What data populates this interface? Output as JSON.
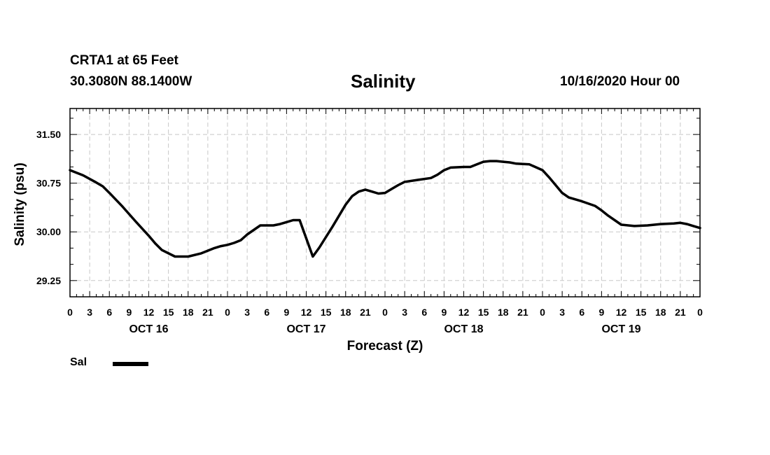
{
  "header": {
    "station": "CRTA1 at 65 Feet",
    "coords": "30.3080N 88.1400W",
    "stamp": "10/16/2020 Hour 00"
  },
  "chart_data": {
    "type": "line",
    "title": "Salinity",
    "xlabel": "Forecast (Z)",
    "ylabel": "Salinity (psu)",
    "x_unit": "forecast hour",
    "xlim": [
      0,
      96
    ],
    "ylim": [
      29.0,
      31.9
    ],
    "y_ticks": [
      29.25,
      30.0,
      30.75,
      31.5
    ],
    "y_tick_labels": [
      "29.25",
      "30.00",
      "30.75",
      "31.50"
    ],
    "x_ticks": [
      0,
      3,
      6,
      9,
      12,
      15,
      18,
      21,
      24,
      27,
      30,
      33,
      36,
      39,
      42,
      45,
      48,
      51,
      54,
      57,
      60,
      63,
      66,
      69,
      72,
      75,
      78,
      81,
      84,
      87,
      90,
      93,
      96
    ],
    "x_tick_labels": [
      "0",
      "3",
      "6",
      "9",
      "12",
      "15",
      "18",
      "21",
      "0",
      "3",
      "6",
      "9",
      "12",
      "15",
      "18",
      "21",
      "0",
      "3",
      "6",
      "9",
      "12",
      "15",
      "18",
      "21",
      "0",
      "3",
      "6",
      "9",
      "12",
      "15",
      "18",
      "21",
      "0"
    ],
    "day_labels": [
      {
        "x": 12,
        "label": "OCT 16"
      },
      {
        "x": 36,
        "label": "OCT 17"
      },
      {
        "x": 60,
        "label": "OCT 18"
      },
      {
        "x": 84,
        "label": "OCT 19"
      }
    ],
    "grid": true,
    "series": [
      {
        "name": "Sal",
        "color": "#000000",
        "x": [
          0,
          2,
          4,
          5,
          6,
          8,
          10,
          12,
          13,
          14,
          16,
          18,
          20,
          22,
          23,
          24,
          25,
          26,
          27,
          29,
          31,
          32,
          33,
          34,
          35,
          37,
          38,
          39,
          40,
          42,
          43,
          44,
          45,
          46,
          47,
          48,
          49,
          50,
          51,
          53,
          55,
          56,
          57,
          58,
          60,
          61,
          62,
          63,
          64,
          65,
          66,
          67,
          68,
          70,
          72,
          73,
          74,
          75,
          76,
          78,
          80,
          81,
          82,
          84,
          86,
          88,
          90,
          92,
          93,
          94,
          95,
          96
        ],
        "y": [
          30.95,
          30.87,
          30.76,
          30.7,
          30.6,
          30.39,
          30.16,
          29.94,
          29.82,
          29.72,
          29.62,
          29.62,
          29.67,
          29.75,
          29.78,
          29.8,
          29.83,
          29.87,
          29.96,
          30.1,
          30.1,
          30.12,
          30.15,
          30.18,
          30.18,
          29.62,
          29.76,
          29.92,
          30.08,
          30.42,
          30.55,
          30.62,
          30.65,
          30.62,
          30.59,
          30.6,
          30.66,
          30.72,
          30.77,
          30.8,
          30.83,
          30.88,
          30.95,
          30.99,
          31.0,
          31.0,
          31.04,
          31.08,
          31.09,
          31.09,
          31.08,
          31.07,
          31.05,
          31.04,
          30.95,
          30.84,
          30.72,
          30.6,
          30.53,
          30.47,
          30.4,
          30.33,
          30.25,
          30.11,
          30.09,
          30.1,
          30.12,
          30.13,
          30.14,
          30.12,
          30.09,
          30.06
        ]
      }
    ],
    "legend": {
      "placement": "bottom-left",
      "entries": [
        "Sal"
      ]
    }
  }
}
